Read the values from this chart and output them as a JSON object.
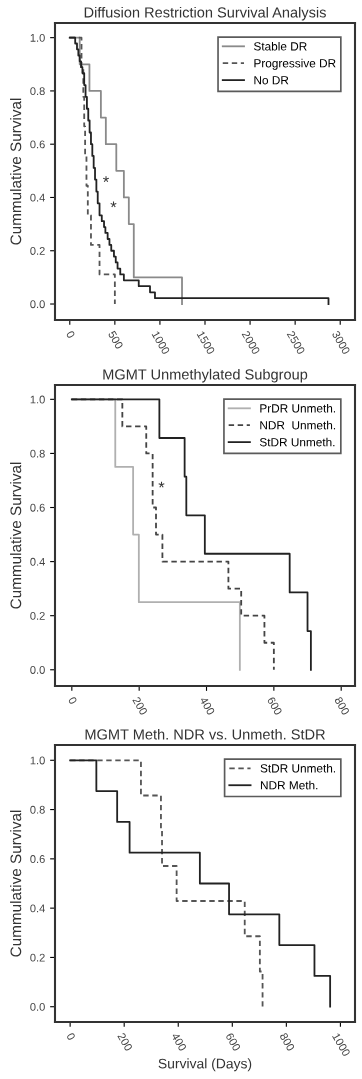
{
  "chart_data": [
    {
      "type": "step",
      "title": "Diffusion Restriction Survival Analysis",
      "ylabel": "Cummulative Survival",
      "xlim": [
        -164,
        3164
      ],
      "xticks": [
        0,
        500,
        1000,
        1500,
        2000,
        2500,
        3000
      ],
      "ylim": [
        -0.06,
        1.055
      ],
      "yticks": [
        {
          "value": 0,
          "label": "0.0"
        },
        {
          "value": 0.2,
          "label": "0.2"
        },
        {
          "value": 0.4,
          "label": "0.4"
        },
        {
          "value": 0.6,
          "label": "0.6"
        },
        {
          "value": 0.8,
          "label": "0.8"
        },
        {
          "value": 1,
          "label": "1.0"
        }
      ],
      "legend": "top right",
      "grid": false,
      "annotations": [
        "*",
        "*"
      ],
      "series": [
        {
          "name": "Stable DR",
          "color": "#8a8a8a",
          "line_style": "solid",
          "x": [
            0,
            110,
            218,
            345,
            400,
            516,
            600,
            655,
            710,
            1245
          ],
          "values": [
            1,
            0.9,
            0.8,
            0.7,
            0.6,
            0.5,
            0.4,
            0.3,
            0.1,
            0
          ]
        },
        {
          "name": "Progressive DR",
          "color": "#555555",
          "line_style": "dashed",
          "x": [
            0,
            130,
            150,
            160,
            170,
            185,
            200,
            235,
            330,
            500
          ],
          "values": [
            1,
            0.889,
            0.778,
            0.667,
            0.556,
            0.444,
            0.333,
            0.222,
            0.111,
            0
          ]
        },
        {
          "name": "No DR",
          "color": "#222222",
          "line_style": "solid",
          "x": [
            0,
            60,
            80,
            95,
            110,
            125,
            140,
            160,
            175,
            190,
            205,
            220,
            235,
            250,
            265,
            280,
            295,
            310,
            330,
            355,
            380,
            395,
            420,
            440,
            460,
            490,
            510,
            530,
            560,
            600,
            765,
            890,
            945,
            2870
          ],
          "values": [
            1,
            0.978,
            0.956,
            0.933,
            0.911,
            0.889,
            0.867,
            0.822,
            0.778,
            0.733,
            0.689,
            0.644,
            0.6,
            0.556,
            0.511,
            0.467,
            0.422,
            0.378,
            0.333,
            0.311,
            0.289,
            0.267,
            0.244,
            0.222,
            0.2,
            0.178,
            0.156,
            0.133,
            0.111,
            0.089,
            0.067,
            0.044,
            0.022,
            0
          ]
        }
      ]
    },
    {
      "type": "step",
      "title": "MGMT Unmethylated Subgroup",
      "ylabel": "Cummulative Survival",
      "xlim": [
        -50,
        841
      ],
      "xticks": [
        0,
        200,
        400,
        600,
        800
      ],
      "ylim": [
        -0.06,
        1.053
      ],
      "yticks": [
        {
          "value": 0,
          "label": "0.0"
        },
        {
          "value": 0.2,
          "label": "0.2"
        },
        {
          "value": 0.4,
          "label": "0.4"
        },
        {
          "value": 0.6,
          "label": "0.6"
        },
        {
          "value": 0.8,
          "label": "0.8"
        },
        {
          "value": 1,
          "label": "1.0"
        }
      ],
      "legend": "top right",
      "grid": false,
      "annotations": [
        "*"
      ],
      "series": [
        {
          "name": "PrDR Unmeth.",
          "color": "#b0b0b0",
          "line_style": "solid",
          "x": [
            0,
            129,
            182,
            199,
            499
          ],
          "values": [
            1,
            0.75,
            0.5,
            0.25,
            0
          ]
        },
        {
          "name": "NDR  Unmeth.",
          "color": "#444444",
          "line_style": "dashed",
          "x": [
            0,
            150,
            221,
            240,
            250,
            269,
            465,
            503,
            572,
            600
          ],
          "values": [
            1,
            0.9,
            0.8,
            0.6,
            0.5,
            0.4,
            0.3,
            0.2,
            0.1,
            0
          ]
        },
        {
          "name": "StDR Unmeth.",
          "color": "#222222",
          "line_style": "solid",
          "x": [
            0,
            260,
            335,
            340,
            395,
            647,
            700,
            710
          ],
          "values": [
            1,
            0.857,
            0.714,
            0.571,
            0.429,
            0.286,
            0.143,
            0
          ]
        }
      ]
    },
    {
      "type": "step",
      "title": "MGMT Meth. NDR vs. Unmeth. StDR",
      "ylabel": "Cummulative Survival",
      "xlabel": "Survival (Days)",
      "xlim": [
        -56,
        1054
      ],
      "xticks": [
        0,
        200,
        400,
        600,
        800,
        1000
      ],
      "ylim": [
        -0.062,
        1.062
      ],
      "yticks": [
        {
          "value": 0,
          "label": "0.0"
        },
        {
          "value": 0.2,
          "label": "0.2"
        },
        {
          "value": 0.4,
          "label": "0.4"
        },
        {
          "value": 0.6,
          "label": "0.6"
        },
        {
          "value": 0.8,
          "label": "0.8"
        },
        {
          "value": 1,
          "label": "1.0"
        }
      ],
      "legend": "top right",
      "grid": false,
      "series": [
        {
          "name": "StDR Unmeth.",
          "color": "#555555",
          "line_style": "dashed",
          "x": [
            0,
            262,
            336,
            340,
            394,
            646,
            702,
            712
          ],
          "values": [
            1,
            0.857,
            0.714,
            0.571,
            0.429,
            0.286,
            0.143,
            0
          ]
        },
        {
          "name": "NDR Meth.",
          "color": "#222222",
          "line_style": "solid",
          "x": [
            0,
            97,
            174,
            220,
            480,
            588,
            774,
            904,
            962
          ],
          "values": [
            1,
            0.875,
            0.75,
            0.625,
            0.5,
            0.375,
            0.25,
            0.125,
            0
          ]
        }
      ]
    }
  ]
}
